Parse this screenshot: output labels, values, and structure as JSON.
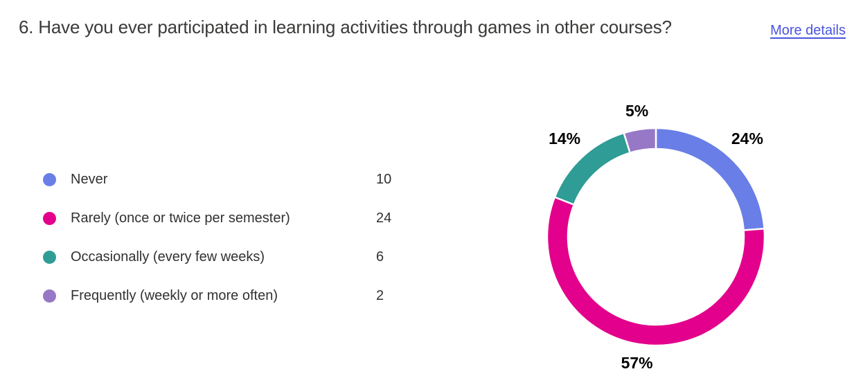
{
  "header": {
    "question_title": "6. Have you ever participated in learning activities through games in other courses?",
    "more_details_label": "More details"
  },
  "chart_data": {
    "type": "pie",
    "variant": "donut",
    "legend_position": "left",
    "categories": [
      "Never",
      "Rarely (once or twice per semester)",
      "Occasionally (every few weeks)",
      "Frequently (weekly or more often)"
    ],
    "values": [
      10,
      24,
      6,
      2
    ],
    "percent_labels": [
      "24%",
      "57%",
      "14%",
      "5%"
    ],
    "colors": [
      "#697ee6",
      "#e3008c",
      "#2f9c96",
      "#9678c6"
    ]
  },
  "theme": {
    "background": "#ffffff",
    "title_color": "#3b3a39",
    "text_color": "#323130",
    "link_color": "#4a53e0",
    "percent_label_color": "#000000",
    "segment_gap_color": "#ffffff"
  }
}
